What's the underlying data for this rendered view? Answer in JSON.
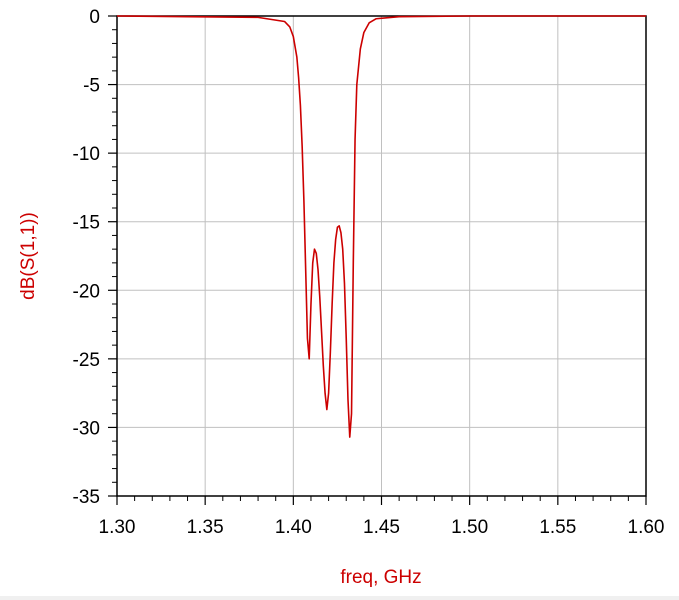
{
  "chart_data": {
    "type": "line",
    "title": "",
    "xlabel": "freq, GHz",
    "ylabel": "dB(S(1,1))",
    "xlim": [
      1.3,
      1.6
    ],
    "ylim": [
      -35,
      0
    ],
    "grid": true,
    "legend": "none",
    "x_ticks": [
      "1.30",
      "1.35",
      "1.40",
      "1.45",
      "1.50",
      "1.55",
      "1.60"
    ],
    "y_ticks": [
      "0",
      "-5",
      "-10",
      "-15",
      "-20",
      "-25",
      "-30",
      "-35"
    ],
    "x_tick_values": [
      1.3,
      1.35,
      1.4,
      1.45,
      1.5,
      1.55,
      1.6
    ],
    "y_tick_values": [
      0,
      -5,
      -10,
      -15,
      -20,
      -25,
      -30,
      -35
    ],
    "series": [
      {
        "name": "",
        "color": "#cc0000",
        "x": [
          1.3,
          1.34,
          1.38,
          1.395,
          1.398,
          1.4,
          1.402,
          1.403,
          1.404,
          1.405,
          1.406,
          1.407,
          1.408,
          1.409,
          1.41,
          1.411,
          1.412,
          1.413,
          1.414,
          1.415,
          1.416,
          1.417,
          1.418,
          1.419,
          1.42,
          1.421,
          1.422,
          1.423,
          1.424,
          1.425,
          1.426,
          1.427,
          1.428,
          1.429,
          1.43,
          1.431,
          1.432,
          1.433,
          1.434,
          1.435,
          1.436,
          1.438,
          1.44,
          1.443,
          1.447,
          1.46,
          1.5,
          1.6
        ],
        "y": [
          0,
          -0.05,
          -0.1,
          -0.4,
          -0.8,
          -1.5,
          -3.0,
          -4.5,
          -6.5,
          -9.5,
          -13.5,
          -18.5,
          -23.5,
          -25.0,
          -21.0,
          -18.0,
          -17.0,
          -17.3,
          -18.5,
          -20.5,
          -23.0,
          -25.5,
          -27.5,
          -28.7,
          -27.5,
          -24.5,
          -21.0,
          -18.0,
          -16.3,
          -15.4,
          -15.3,
          -15.8,
          -17.0,
          -19.5,
          -23.5,
          -28.0,
          -30.7,
          -29.0,
          -18.0,
          -9.0,
          -5.0,
          -2.4,
          -1.2,
          -0.5,
          -0.2,
          -0.05,
          0,
          0
        ]
      }
    ]
  },
  "colors": {
    "trace": "#cc0000",
    "axis_title": "#cc0000",
    "ylabel": "#cc0000",
    "grid": "#c0c0c0",
    "axis": "#000000",
    "background": "#ffffff"
  }
}
